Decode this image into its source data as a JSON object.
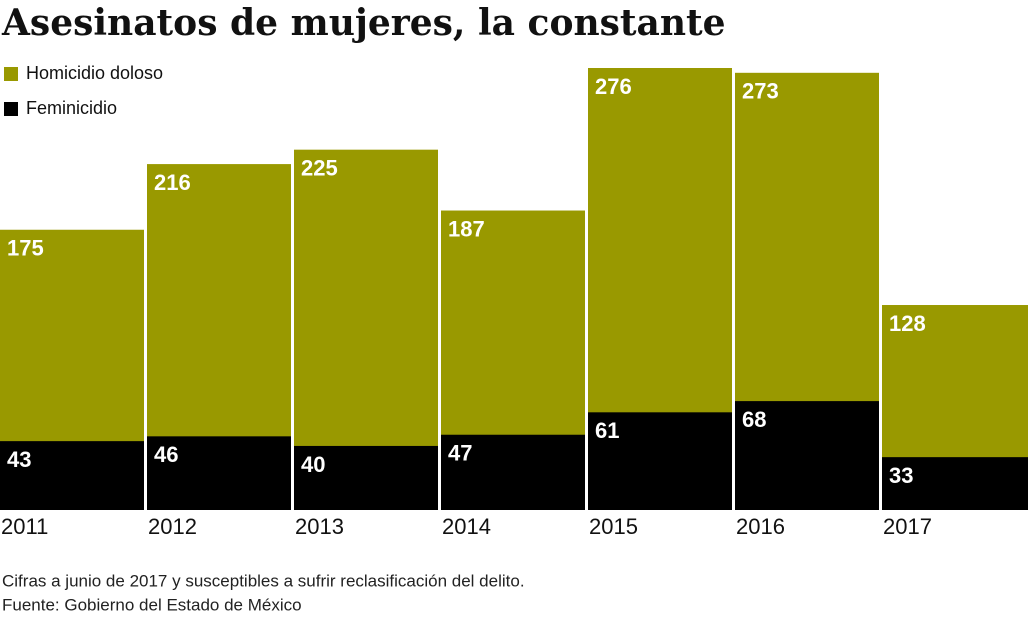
{
  "chart_data": {
    "type": "bar",
    "title": "Asesinatos de mujeres, la constante",
    "categories": [
      "2011",
      "2012",
      "2013",
      "2014",
      "2015",
      "2016",
      "2017"
    ],
    "series": [
      {
        "name": "Homicidio doloso",
        "color": "#999900",
        "values": [
          175,
          216,
          225,
          187,
          276,
          273,
          128
        ]
      },
      {
        "name": "Feminicidio",
        "color": "#000000",
        "values": [
          43,
          46,
          40,
          47,
          61,
          68,
          33
        ]
      }
    ],
    "notes": [
      "Cifras a junio de 2017 y susceptibles a sufrir reclasificación del delito.",
      "Fuente: Gobierno del Estado de México"
    ]
  }
}
